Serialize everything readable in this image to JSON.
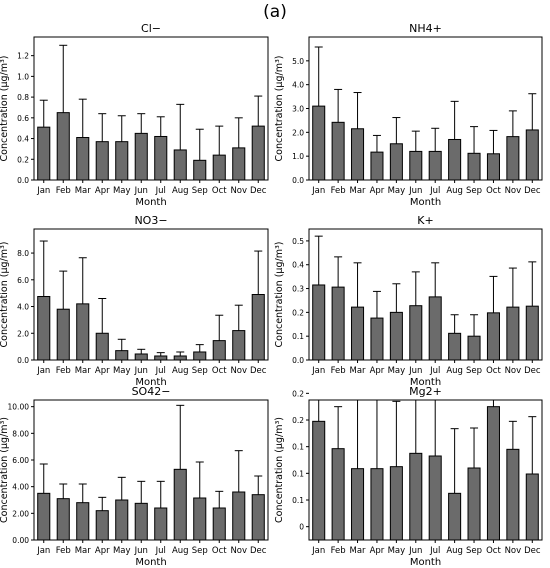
{
  "figure_label": "(a)",
  "chart_data": [
    {
      "type": "bar",
      "title": "Cl−",
      "xlabel": "Month",
      "ylabel": "Concentration (µg/m³)",
      "categories": [
        "Jan",
        "Feb",
        "Mar",
        "Apr",
        "May",
        "Jun",
        "Jul",
        "Aug",
        "Sep",
        "Oct",
        "Nov",
        "Dec"
      ],
      "values": [
        0.51,
        0.65,
        0.41,
        0.37,
        0.37,
        0.45,
        0.42,
        0.29,
        0.19,
        0.24,
        0.31,
        0.52
      ],
      "errors": [
        0.26,
        0.65,
        0.37,
        0.27,
        0.25,
        0.19,
        0.19,
        0.44,
        0.3,
        0.28,
        0.29,
        0.29
      ],
      "ylim": [
        0,
        1.38
      ],
      "yticks": [
        0.0,
        0.2,
        0.4,
        0.6,
        0.8,
        1.0,
        1.2
      ],
      "ytick_labels": [
        "0.0",
        "0.2",
        "0.4",
        "0.6",
        "0.8",
        "1.0",
        "1.2"
      ],
      "grid": false
    },
    {
      "type": "bar",
      "title": "NH4+",
      "xlabel": "Month",
      "ylabel": "Concentration (µg/m³)",
      "categories": [
        "Jan",
        "Feb",
        "Mar",
        "Apr",
        "May",
        "Jun",
        "Jul",
        "Aug",
        "Sep",
        "Oct",
        "Nov",
        "Dec"
      ],
      "values": [
        3.1,
        2.42,
        2.15,
        1.17,
        1.52,
        1.2,
        1.2,
        1.7,
        1.12,
        1.1,
        1.82,
        2.1
      ],
      "errors": [
        2.48,
        1.38,
        1.52,
        0.7,
        1.1,
        0.85,
        0.97,
        1.6,
        1.12,
        0.98,
        1.08,
        1.52
      ],
      "ylim": [
        0,
        6.0
      ],
      "yticks": [
        0.0,
        1.0,
        2.0,
        3.0,
        4.0,
        5.0
      ],
      "ytick_labels": [
        "0.0",
        "1.0",
        "2.0",
        "3.0",
        "4.0",
        "5.0"
      ],
      "grid": false
    },
    {
      "type": "bar",
      "title": "NO3−",
      "xlabel": "Month",
      "ylabel": "Concentration (µg/m³)",
      "categories": [
        "Jan",
        "Feb",
        "Mar",
        "Apr",
        "May",
        "Jun",
        "Jul",
        "Aug",
        "Sep",
        "Oct",
        "Nov",
        "Dec"
      ],
      "values": [
        4.75,
        3.8,
        4.2,
        2.0,
        0.7,
        0.45,
        0.3,
        0.3,
        0.6,
        1.45,
        2.2,
        4.9
      ],
      "errors": [
        4.15,
        2.85,
        3.45,
        2.6,
        0.85,
        0.35,
        0.25,
        0.3,
        0.55,
        1.9,
        1.9,
        3.25
      ],
      "ylim": [
        0,
        9.8
      ],
      "yticks": [
        0,
        2,
        4,
        6,
        8
      ],
      "ytick_labels": [
        "0.0",
        "2.0",
        "4.0",
        "6.0",
        "8.0"
      ],
      "grid": false
    },
    {
      "type": "bar",
      "title": "K+",
      "xlabel": "Month",
      "ylabel": "Concentration (µg/m³)",
      "categories": [
        "Jan",
        "Feb",
        "Mar",
        "Apr",
        "May",
        "Jun",
        "Jul",
        "Aug",
        "Sep",
        "Oct",
        "Nov",
        "Dec"
      ],
      "values": [
        0.315,
        0.306,
        0.222,
        0.176,
        0.2,
        0.228,
        0.265,
        0.112,
        0.1,
        0.198,
        0.222,
        0.226
      ],
      "errors": [
        0.205,
        0.127,
        0.186,
        0.112,
        0.12,
        0.142,
        0.143,
        0.078,
        0.09,
        0.153,
        0.164,
        0.186
      ],
      "ylim": [
        0,
        0.55
      ],
      "yticks": [
        0.0,
        0.1,
        0.2,
        0.3,
        0.4,
        0.5
      ],
      "ytick_labels": [
        "0.0",
        "0.1",
        "0.2",
        "0.3",
        "0.4",
        "0.5"
      ],
      "grid": false
    },
    {
      "type": "bar",
      "title": "SO42−",
      "xlabel": "Month",
      "ylabel": "Concentration (µg/m³)",
      "categories": [
        "Jan",
        "Feb",
        "Mar",
        "Apr",
        "May",
        "Jun",
        "Jul",
        "Aug",
        "Sep",
        "Oct",
        "Nov",
        "Dec"
      ],
      "values": [
        3.5,
        3.1,
        2.8,
        2.2,
        3.0,
        2.75,
        2.4,
        5.3,
        3.15,
        2.4,
        3.6,
        3.4
      ],
      "errors": [
        2.2,
        1.1,
        1.4,
        1.0,
        1.7,
        1.65,
        2.0,
        4.8,
        2.7,
        1.25,
        3.1,
        1.4
      ],
      "ylim": [
        0,
        10.5
      ],
      "yticks": [
        0,
        2,
        4,
        6,
        8,
        10
      ],
      "ytick_labels": [
        "0.00",
        "2.00",
        "4.00",
        "6.00",
        "8.00",
        "10.00"
      ],
      "grid": false
    },
    {
      "type": "bar",
      "title": "Mg2+",
      "xlabel": "Month",
      "ylabel": "Concentration (µg/m³)",
      "categories": [
        "Jan",
        "Feb",
        "Mar",
        "Apr",
        "May",
        "Jun",
        "Jul",
        "Aug",
        "Sep",
        "Oct",
        "Nov",
        "Dec"
      ],
      "values": [
        0.178,
        0.137,
        0.107,
        0.107,
        0.11,
        0.13,
        0.126,
        0.07,
        0.108,
        0.2,
        0.136,
        0.099
      ],
      "errors": [
        0.13,
        0.063,
        0.105,
        0.108,
        0.098,
        0.083,
        0.119,
        0.097,
        0.06,
        0.065,
        0.042,
        0.086
      ],
      "ylim": [
        0,
        0.21
      ],
      "yticks": [
        0.02,
        0.06,
        0.1,
        0.14,
        0.18,
        0.22
      ],
      "ytick_labels": [
        "0",
        "0.1",
        "0.1",
        "0.1",
        "0.2",
        "0.2"
      ],
      "grid": false
    }
  ],
  "colors": {
    "bar_fill": "#6b6b6b",
    "bar_edge": "#000000",
    "errorbar": "#000000",
    "axis": "#000000"
  }
}
